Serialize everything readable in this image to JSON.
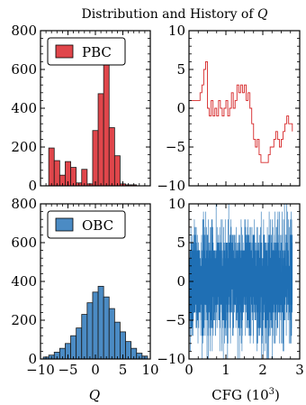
{
  "figure_title": "Distribution and History of Q",
  "chart_data": [
    {
      "type": "bar",
      "panel": "top-left",
      "series": [
        {
          "name": "PBC",
          "color": "#e0464b"
        }
      ],
      "legend": {
        "label": "PBC",
        "placement": "top-left"
      },
      "bin_width": 1,
      "bins": [
        {
          "x": -8,
          "count": 195
        },
        {
          "x": -7,
          "count": 130
        },
        {
          "x": -6,
          "count": 55
        },
        {
          "x": -5,
          "count": 125
        },
        {
          "x": -4,
          "count": 95
        },
        {
          "x": -3,
          "count": 15
        },
        {
          "x": -2,
          "count": 85
        },
        {
          "x": -1,
          "count": 10
        },
        {
          "x": 0,
          "count": 285
        },
        {
          "x": 1,
          "count": 475
        },
        {
          "x": 2,
          "count": 700
        },
        {
          "x": 3,
          "count": 300
        },
        {
          "x": 4,
          "count": 155
        },
        {
          "x": 5,
          "count": 10
        },
        {
          "x": 6,
          "count": 5
        },
        {
          "x": 7,
          "count": 5
        }
      ],
      "xlim": [
        -10,
        10
      ],
      "ylim": [
        0,
        800
      ],
      "yticks": [
        "0",
        "200",
        "400",
        "600",
        "800"
      ],
      "xlabel": ""
    },
    {
      "type": "line",
      "panel": "top-right",
      "series": [
        {
          "color": "#d62728"
        }
      ],
      "x": [
        0,
        0.05,
        0.1,
        0.15,
        0.2,
        0.25,
        0.3,
        0.35,
        0.4,
        0.45,
        0.5,
        0.55,
        0.6,
        0.65,
        0.7,
        0.75,
        0.8,
        0.85,
        0.9,
        0.95,
        1.0,
        1.05,
        1.1,
        1.15,
        1.2,
        1.25,
        1.3,
        1.35,
        1.4,
        1.45,
        1.5,
        1.55,
        1.6,
        1.65,
        1.7,
        1.75,
        1.8,
        1.85,
        1.9,
        1.95,
        2.0,
        2.05,
        2.1,
        2.15,
        2.2,
        2.25,
        2.3,
        2.35,
        2.4,
        2.45,
        2.5,
        2.55,
        2.6,
        2.65,
        2.7,
        2.75,
        2.8
      ],
      "y": [
        1,
        1,
        1,
        1,
        1,
        1,
        2,
        3,
        5,
        6,
        0,
        -1,
        1,
        -1,
        0,
        -1,
        1,
        0,
        -1,
        0,
        1,
        -1,
        0,
        2,
        0,
        1,
        3,
        2,
        3,
        2,
        3,
        1,
        2,
        0,
        -2,
        -4,
        -5,
        -4,
        -6,
        -7,
        -7,
        -7,
        -7,
        -6,
        -5,
        -5,
        -4,
        -3,
        -4,
        -5,
        -4,
        -3,
        -2,
        -1,
        -2,
        -2,
        -3
      ],
      "xlim": [
        0,
        3
      ],
      "ylim": [
        -10,
        10
      ],
      "yticks": [
        "−10",
        "−5",
        "0",
        "5",
        "10"
      ]
    },
    {
      "type": "bar",
      "panel": "bottom-left",
      "series": [
        {
          "name": "OBC",
          "color": "#4b8bc4"
        }
      ],
      "legend": {
        "label": "OBC",
        "placement": "top-left"
      },
      "bin_width": 1,
      "bins": [
        {
          "x": -9,
          "count": 10
        },
        {
          "x": -8,
          "count": 20
        },
        {
          "x": -7,
          "count": 35
        },
        {
          "x": -6,
          "count": 55
        },
        {
          "x": -5,
          "count": 80
        },
        {
          "x": -4,
          "count": 120
        },
        {
          "x": -3,
          "count": 160
        },
        {
          "x": -2,
          "count": 230
        },
        {
          "x": -1,
          "count": 290
        },
        {
          "x": 0,
          "count": 345
        },
        {
          "x": 1,
          "count": 375
        },
        {
          "x": 2,
          "count": 320
        },
        {
          "x": 3,
          "count": 260
        },
        {
          "x": 4,
          "count": 190
        },
        {
          "x": 5,
          "count": 140
        },
        {
          "x": 6,
          "count": 90
        },
        {
          "x": 7,
          "count": 55
        },
        {
          "x": 8,
          "count": 30
        },
        {
          "x": 9,
          "count": 15
        }
      ],
      "xlim": [
        -10,
        10
      ],
      "ylim": [
        0,
        800
      ],
      "xticks": [
        "−10",
        "−5",
        "0",
        "5",
        "10"
      ],
      "yticks": [
        "0",
        "200",
        "400",
        "600",
        "800"
      ],
      "xlabel": "Q"
    },
    {
      "type": "line",
      "panel": "bottom-right",
      "series": [
        {
          "color": "#1f6fb4"
        }
      ],
      "n_points": 2800,
      "x_range": [
        0,
        2.8
      ],
      "y_spread_std": 3.4,
      "xlim": [
        0,
        3
      ],
      "ylim": [
        -10,
        10
      ],
      "xticks": [
        "0",
        "1",
        "2",
        "3"
      ],
      "yticks": [
        "−10",
        "−5",
        "0",
        "5",
        "10"
      ],
      "xlabel": "CFG (10³)"
    }
  ]
}
